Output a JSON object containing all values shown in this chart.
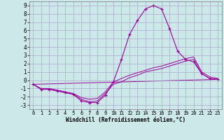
{
  "xlabel": "Windchill (Refroidissement éolien,°C)",
  "bg_color": "#cce8e8",
  "line_color": "#990099",
  "grid_color": "#aaaacc",
  "xlim": [
    -0.5,
    23.5
  ],
  "ylim": [
    -3.5,
    9.5
  ],
  "xticks": [
    0,
    1,
    2,
    3,
    4,
    5,
    6,
    7,
    8,
    9,
    10,
    11,
    12,
    13,
    14,
    15,
    16,
    17,
    18,
    19,
    20,
    21,
    22,
    23
  ],
  "yticks": [
    -3,
    -2,
    -1,
    0,
    1,
    2,
    3,
    4,
    5,
    6,
    7,
    8,
    9
  ],
  "series": {
    "main": {
      "x": [
        0,
        1,
        2,
        3,
        4,
        5,
        6,
        7,
        8,
        9,
        10,
        11,
        12,
        13,
        14,
        15,
        16,
        17,
        18,
        19,
        20,
        21,
        22,
        23
      ],
      "y": [
        -0.5,
        -1.1,
        -1.1,
        -1.3,
        -1.5,
        -1.7,
        -2.5,
        -2.7,
        -2.7,
        -1.8,
        -0.2,
        2.5,
        5.5,
        7.2,
        8.6,
        9.0,
        8.6,
        6.2,
        3.5,
        2.5,
        2.2,
        0.8,
        0.2,
        0.1
      ]
    },
    "line2": {
      "x": [
        0,
        1,
        2,
        3,
        4,
        5,
        6,
        7,
        8,
        9,
        10,
        11,
        12,
        13,
        14,
        15,
        16,
        17,
        18,
        19,
        20,
        21,
        22,
        23
      ],
      "y": [
        -0.5,
        -1.1,
        -1.1,
        -1.3,
        -1.5,
        -1.7,
        -2.3,
        -2.6,
        -2.5,
        -1.6,
        -0.5,
        -0.2,
        0.3,
        0.6,
        1.0,
        1.2,
        1.4,
        1.7,
        2.0,
        2.3,
        2.5,
        0.8,
        0.2,
        0.1
      ]
    },
    "line3": {
      "x": [
        0,
        1,
        2,
        3,
        4,
        5,
        6,
        7,
        8,
        9,
        10,
        11,
        12,
        13,
        14,
        15,
        16,
        17,
        18,
        19,
        20,
        21,
        22,
        23
      ],
      "y": [
        -0.5,
        -1.0,
        -1.0,
        -1.2,
        -1.4,
        -1.6,
        -2.1,
        -2.3,
        -2.2,
        -1.4,
        -0.2,
        0.2,
        0.6,
        0.9,
        1.2,
        1.5,
        1.7,
        2.0,
        2.3,
        2.6,
        2.8,
        1.0,
        0.4,
        0.2
      ]
    },
    "line4": {
      "x": [
        0,
        23
      ],
      "y": [
        -0.5,
        0.1
      ]
    }
  }
}
